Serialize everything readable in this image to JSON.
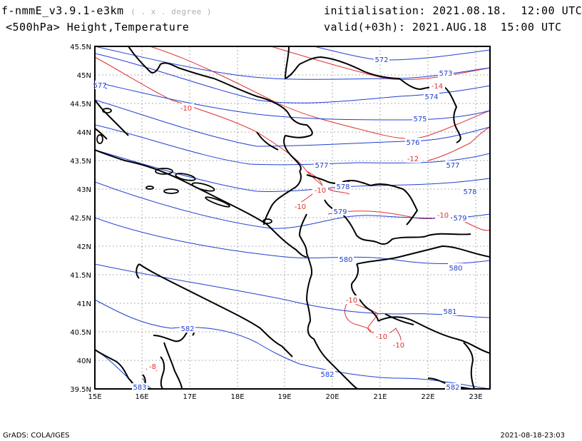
{
  "header": {
    "model": "f-nmmE_v3.9.1-e3km",
    "model_units": "( . x . degree )",
    "field": "<500hPa> Height,Temperature",
    "init_label": "initialisation:",
    "init_value": "2021.08.18.  12:00 UTC",
    "valid_label": "valid(+03h):",
    "valid_value": "2021.AUG.18  15:00 UTC"
  },
  "map": {
    "lat_labels": [
      "45.5N",
      "45N",
      "44.5N",
      "44N",
      "43.5N",
      "43N",
      "42.5N",
      "42N",
      "41.5N",
      "41N",
      "40.5N",
      "40N",
      "39.5N"
    ],
    "lon_labels": [
      "15E",
      "16E",
      "17E",
      "18E",
      "19E",
      "20E",
      "21E",
      "22E",
      "23E"
    ],
    "height_labels": [
      "572",
      "573",
      "574",
      "575",
      "576",
      "577",
      "577",
      "578",
      "578",
      "579",
      "579",
      "580",
      "580",
      "581",
      "582",
      "582",
      "582",
      "583",
      "577"
    ],
    "temp_labels": [
      "-14",
      "-10",
      "-12",
      "-10",
      "-10",
      "-10",
      "-10",
      "-10",
      "-10",
      "-8"
    ],
    "colors": {
      "height": "#2040d0",
      "temperature": "#e03030",
      "coast": "#000000",
      "grid": "#999999"
    }
  },
  "footer": {
    "left": "GrADS: COLA/IGES",
    "right": "2021-08-18-23:03"
  }
}
